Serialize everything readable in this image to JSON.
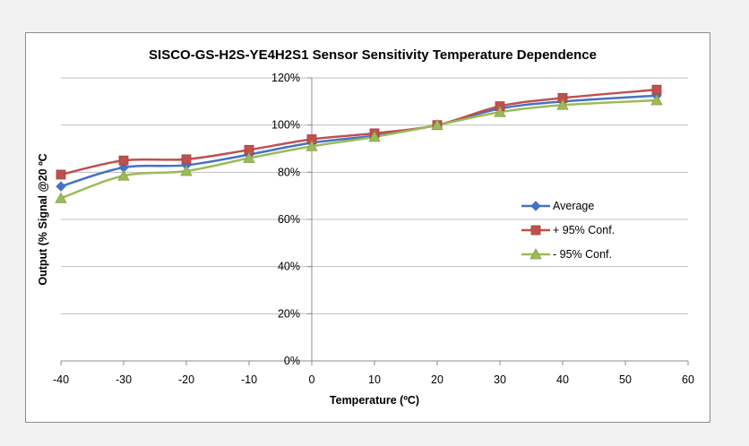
{
  "chart_data": {
    "type": "line",
    "title": "SISCO-GS-H2S-YE4H2S1 Sensor Sensitivity Temperature Dependence",
    "xlabel": "Temperature (ºC)",
    "ylabel": "Output (%  Signal @20 ºC",
    "xlim": [
      -40,
      60
    ],
    "ylim": [
      0,
      1.2
    ],
    "x_ticks": [
      "-40",
      "-30",
      "-20",
      "-10",
      "0",
      "10",
      "20",
      "30",
      "40",
      "50",
      "60"
    ],
    "y_ticks": [
      "0%",
      "20%",
      "40%",
      "60%",
      "80%",
      "100%",
      "120%"
    ],
    "grid": "horizontal",
    "legend_position": "right-center",
    "series": [
      {
        "name": "Average",
        "color": "#4472c4",
        "marker": "diamond",
        "x": [
          -40,
          -30,
          -20,
          -10,
          0,
          10,
          20,
          30,
          40,
          55
        ],
        "y": [
          0.74,
          0.82,
          0.83,
          0.875,
          0.925,
          0.955,
          1.0,
          1.07,
          1.1,
          1.125
        ]
      },
      {
        "name": "+ 95% Conf.",
        "color": "#c0504d",
        "marker": "square",
        "x": [
          -40,
          -30,
          -20,
          -10,
          0,
          10,
          20,
          30,
          40,
          55
        ],
        "y": [
          0.79,
          0.85,
          0.855,
          0.895,
          0.94,
          0.965,
          1.0,
          1.08,
          1.115,
          1.15
        ]
      },
      {
        "name": "- 95% Conf.",
        "color": "#9bbb59",
        "marker": "triangle",
        "x": [
          -40,
          -30,
          -20,
          -10,
          0,
          10,
          20,
          30,
          40,
          55
        ],
        "y": [
          0.69,
          0.785,
          0.805,
          0.86,
          0.91,
          0.95,
          1.0,
          1.055,
          1.085,
          1.105
        ]
      }
    ]
  }
}
